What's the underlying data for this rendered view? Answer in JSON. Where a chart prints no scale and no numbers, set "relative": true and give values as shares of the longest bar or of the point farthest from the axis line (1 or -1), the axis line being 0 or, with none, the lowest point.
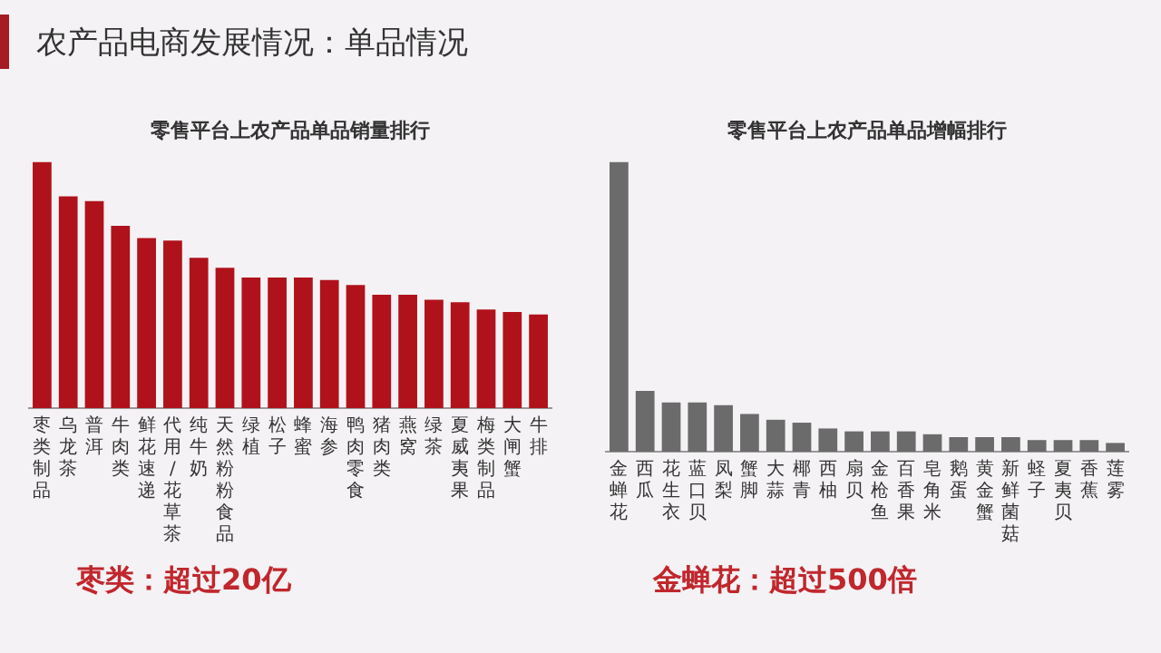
{
  "chart_data": [
    {
      "type": "bar",
      "title": "零售平台上农产品单品销量排行",
      "relative": true,
      "grid": false,
      "legend": false,
      "tick_labels": "x",
      "categories": [
        "枣类制品",
        "乌龙茶",
        "普洱",
        "牛肉类",
        "鲜花速递",
        "代用/花草茶",
        "纯牛奶",
        "天然粉粉食品",
        "绿植",
        "松子",
        "蜂蜜",
        "海参",
        "鸭肉零食",
        "猪肉类",
        "燕窝",
        "绿茶",
        "夏威夷果",
        "梅类制品",
        "大闸蟹",
        "牛排"
      ],
      "series": [
        {
          "color": "#b0121b",
          "values": [
            1,
            0.86,
            0.84,
            0.74,
            0.69,
            0.68,
            0.61,
            0.57,
            0.53,
            0.53,
            0.53,
            0.52,
            0.5,
            0.46,
            0.46,
            0.44,
            0.43,
            0.4,
            0.39,
            0.38
          ]
        }
      ],
      "annotations": [
        "农产品电商发展情况：单品情况",
        "枣类：超过20亿"
      ]
    },
    {
      "type": "bar",
      "title": "零售平台上农产品单品增幅排行",
      "relative": true,
      "grid": false,
      "legend": false,
      "tick_labels": "x",
      "categories": [
        "金蝉花",
        "西瓜",
        "花生衣",
        "蓝口贝",
        "凤梨",
        "蟹脚",
        "大蒜",
        "椰青",
        "西柚",
        "扇贝",
        "金枪鱼",
        "百香果",
        "皂角米",
        "鹅蛋",
        "黄金蟹",
        "新鲜菌菇",
        "蛏子",
        "夏夷贝",
        "香蕉",
        "莲雾"
      ],
      "series": [
        {
          "color": "#6b6b6b",
          "values": [
            1,
            0.21,
            0.17,
            0.17,
            0.16,
            0.13,
            0.11,
            0.1,
            0.08,
            0.07,
            0.07,
            0.07,
            0.06,
            0.05,
            0.05,
            0.05,
            0.04,
            0.04,
            0.04,
            0.03
          ]
        }
      ],
      "annotations": [
        "金蝉花：超过500倍"
      ]
    }
  ]
}
